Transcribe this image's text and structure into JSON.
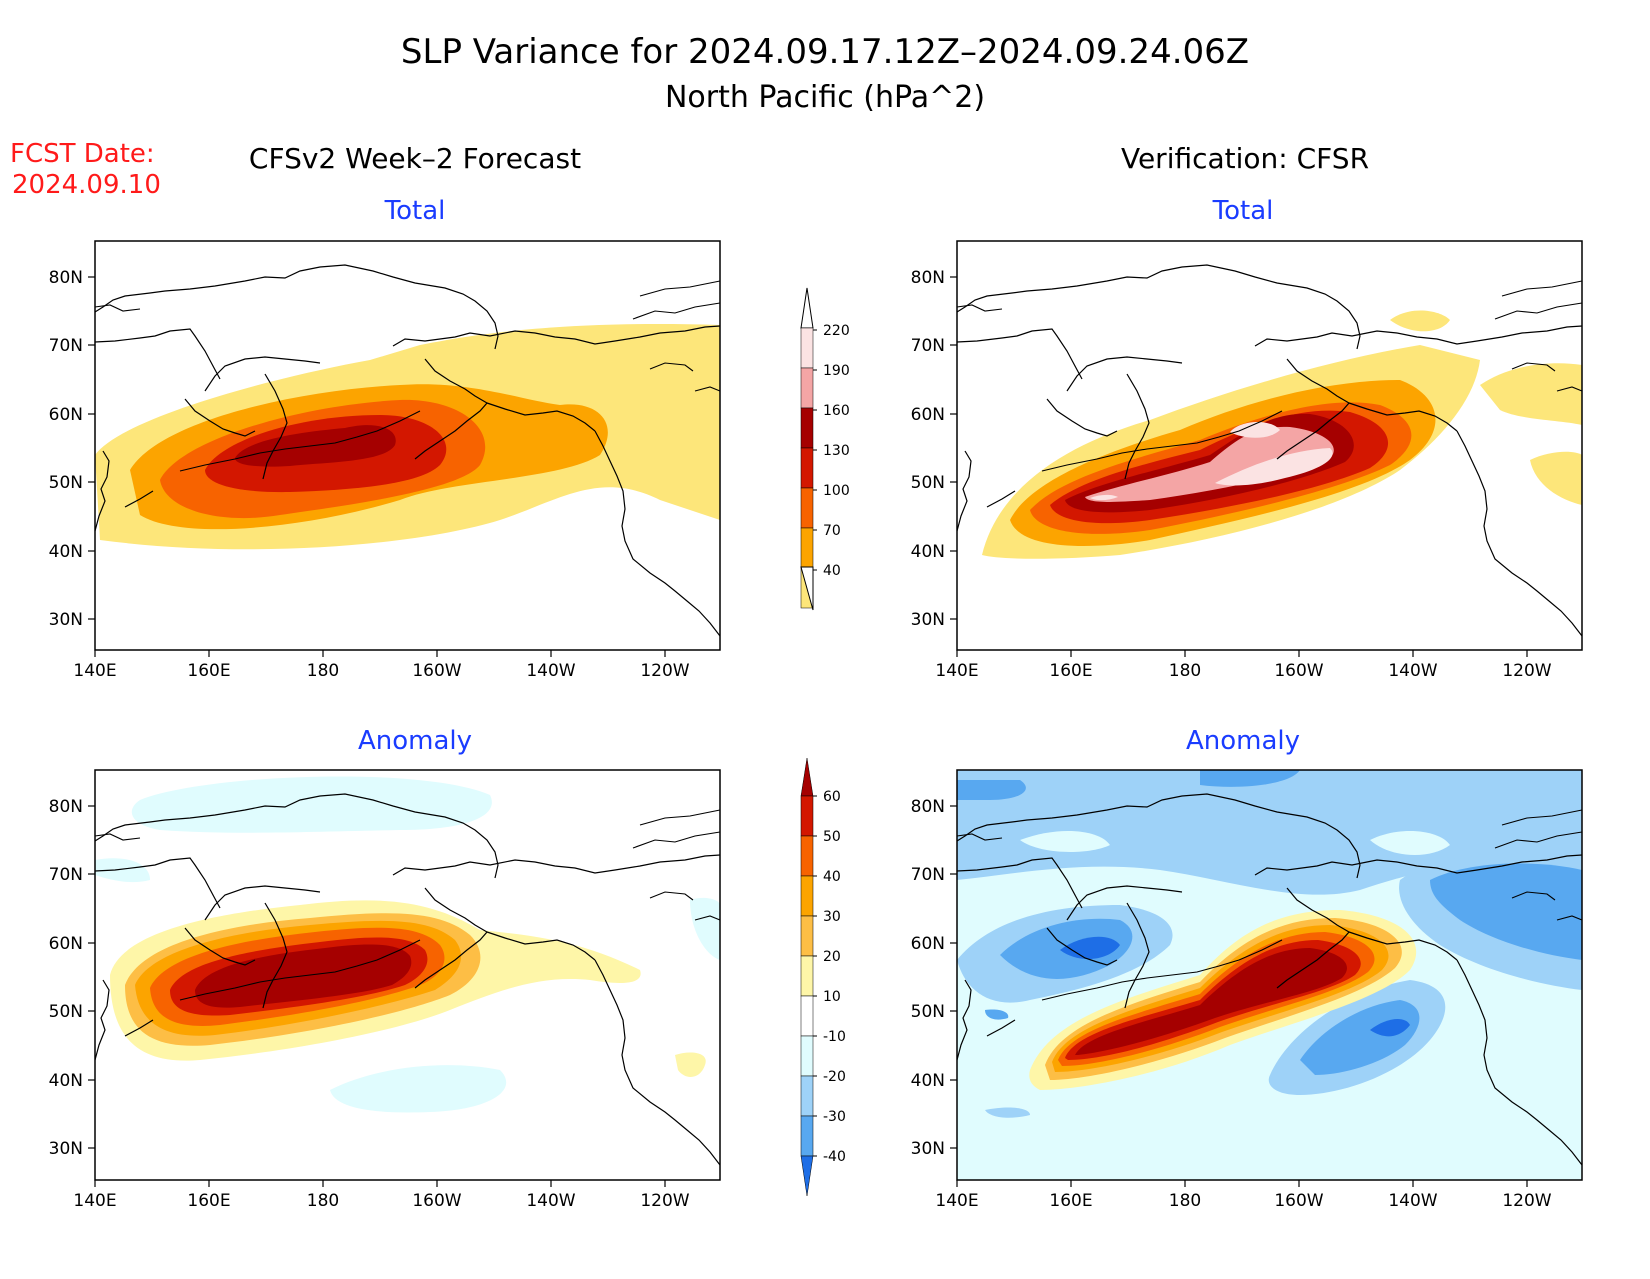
{
  "title": {
    "line1": "SLP Variance for 2024.09.17.12Z–2024.09.24.06Z",
    "line2": "North Pacific (hPa^2)"
  },
  "fcst_date": {
    "line1": "FCST Date:",
    "line2": "2024.09.10"
  },
  "column_titles": {
    "left": "CFSv2 Week–2 Forecast",
    "right": "Verification: CFSR"
  },
  "panel_titles": {
    "total": "Total",
    "anomaly": "Anomaly"
  },
  "lat_labels": [
    "80N",
    "70N",
    "60N",
    "50N",
    "40N",
    "30N"
  ],
  "lon_labels": [
    "140E",
    "160E",
    "180",
    "160W",
    "140W",
    "120W"
  ],
  "colorbar_total": {
    "labels": [
      "220",
      "190",
      "160",
      "130",
      "100",
      "70",
      "40"
    ],
    "colors": [
      "#fbe3e3",
      "#f4a5a5",
      "#a50000",
      "#d31700",
      "#f76300",
      "#fca400",
      "#fde67a"
    ]
  },
  "colorbar_anomaly": {
    "labels": [
      "60",
      "50",
      "40",
      "30",
      "20",
      "10",
      "-10",
      "-20",
      "-30",
      "-40"
    ],
    "colors": [
      "#a50000",
      "#d31700",
      "#f76300",
      "#fca400",
      "#fdbe45",
      "#fef6a8",
      "#ffffff",
      "#e0fcfe",
      "#9ed2f8",
      "#58a8f0",
      "#1e6ee6"
    ]
  }
}
